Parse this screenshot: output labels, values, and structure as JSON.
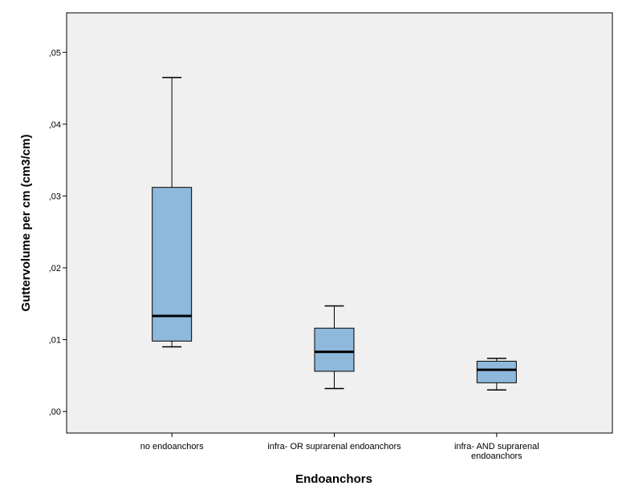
{
  "chart_data": {
    "type": "boxplot",
    "xlabel": "Endoanchors",
    "ylabel": "Guttervolume per cm (cm3/cm)",
    "ylim": [
      -0.003,
      0.0555
    ],
    "yticks": [
      0.0,
      0.01,
      0.02,
      0.03,
      0.04,
      0.05
    ],
    "ytick_labels": [
      ",00",
      ",01",
      ",02",
      ",03",
      ",04",
      ",05"
    ],
    "grid": false,
    "legend": "none",
    "colors": {
      "box_fill": "#8fb9dc",
      "plot_background": "#f0f0f0",
      "stroke": "#000000"
    },
    "categories": [
      {
        "label": [
          "no endoanchors"
        ],
        "min": 0.009,
        "q1": 0.0098,
        "median": 0.0133,
        "q3": 0.0312,
        "max": 0.0465
      },
      {
        "label": [
          "infra- OR suprarenal endoanchors"
        ],
        "min": 0.0032,
        "q1": 0.0056,
        "median": 0.0083,
        "q3": 0.0116,
        "max": 0.0147
      },
      {
        "label": [
          "infra- AND suprarenal",
          "endoanchors"
        ],
        "min": 0.003,
        "q1": 0.004,
        "median": 0.0058,
        "q3": 0.007,
        "max": 0.0074
      }
    ]
  }
}
